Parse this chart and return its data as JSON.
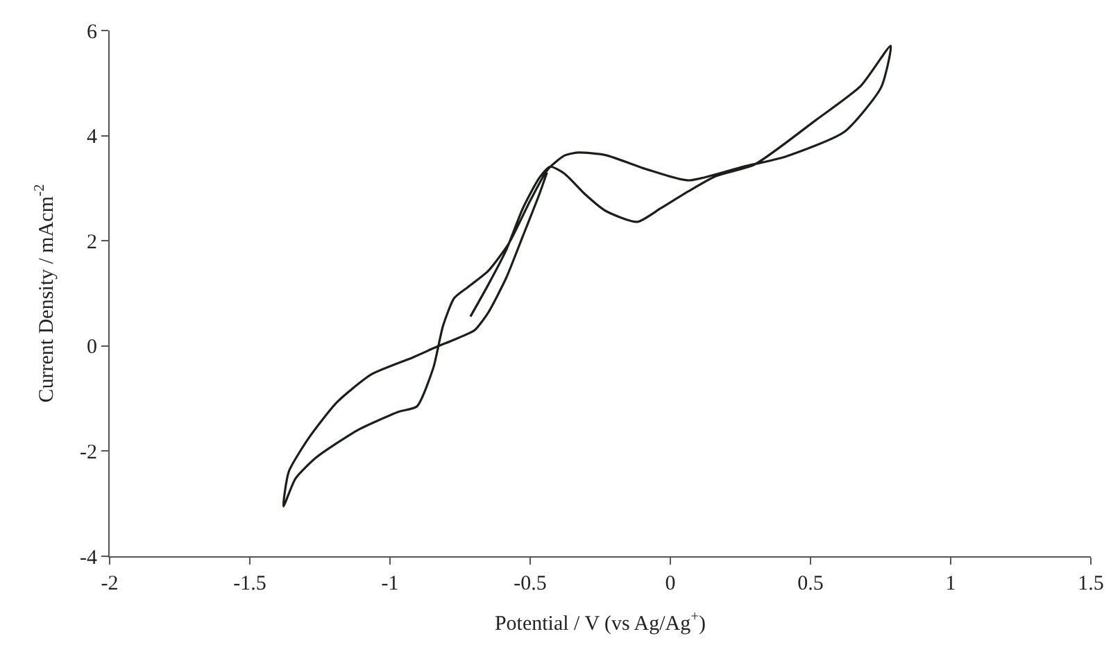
{
  "chart_data": {
    "type": "line",
    "xlabel": "Potential / V (vs Ag/Ag$^{+}$)",
    "ylabel": "Current Density / mAcm$^{-2}$",
    "xlim": [
      -2,
      1.5
    ],
    "xticks": [
      -2,
      -1.5,
      -1,
      -0.5,
      0,
      0.5,
      1,
      1.5
    ],
    "ylim": [
      -4,
      6
    ],
    "yticks": [
      -4,
      -2,
      0,
      2,
      4,
      6
    ],
    "marker": "none",
    "line_style": "solid",
    "series": [
      {
        "color": "#1a1f1a",
        "x": [
          -0.713,
          -0.649,
          -0.585,
          -0.526,
          -0.467,
          -0.428,
          -0.378,
          -0.305,
          -0.231,
          -0.118,
          -0.034,
          0.064,
          0.162,
          0.3,
          0.52,
          0.68,
          0.786,
          0.752,
          0.62,
          0.41,
          0.26,
          0.064,
          -0.084,
          -0.231,
          -0.329,
          -0.378,
          -0.437,
          -0.501,
          -0.575,
          -0.649,
          -0.722,
          -0.771,
          -0.811,
          -0.845,
          -0.904,
          -0.968,
          -1.115,
          -1.263,
          -1.337,
          -1.38,
          -1.361,
          -1.287,
          -1.189,
          -1.066,
          -0.919,
          -0.835,
          -0.771,
          -0.698,
          -0.649,
          -0.585,
          -0.526,
          -0.467,
          -0.44
        ],
        "values": [
          0.56,
          1.17,
          1.83,
          2.62,
          3.2,
          3.41,
          3.28,
          2.89,
          2.57,
          2.36,
          2.62,
          2.94,
          3.23,
          3.45,
          4.3,
          4.95,
          5.71,
          4.92,
          4.07,
          3.6,
          3.41,
          3.15,
          3.36,
          3.63,
          3.68,
          3.62,
          3.36,
          2.75,
          1.96,
          1.43,
          1.12,
          0.91,
          0.38,
          -0.41,
          -1.15,
          -1.25,
          -1.6,
          -2.12,
          -2.52,
          -3.05,
          -2.39,
          -1.73,
          -1.07,
          -0.54,
          -0.22,
          -0.02,
          0.12,
          0.3,
          0.64,
          1.3,
          2.09,
          2.89,
          3.3
        ]
      }
    ]
  }
}
